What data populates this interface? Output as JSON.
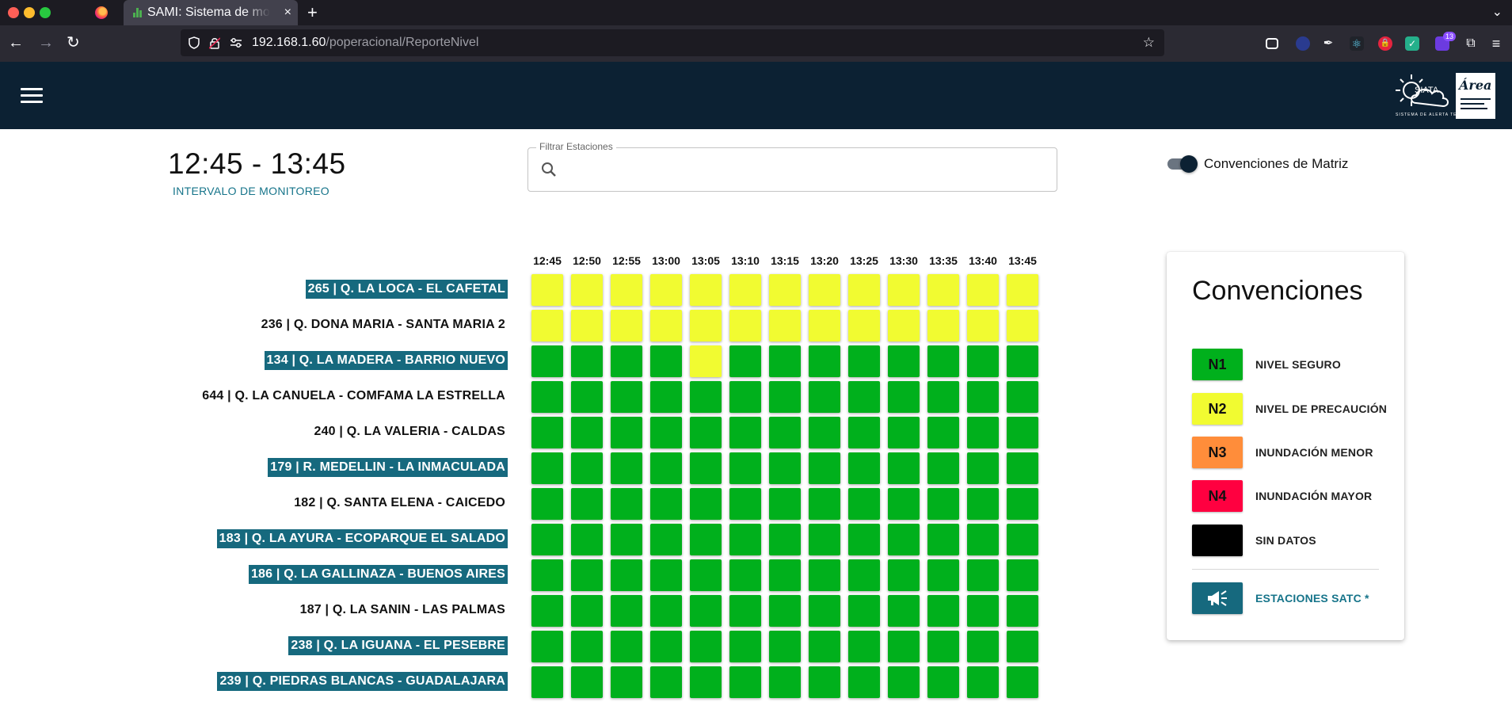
{
  "browser": {
    "tab_title": "SAMI: Sistema de monitoreo",
    "tab_close": "×",
    "new_tab": "+",
    "tab_list": "⌄",
    "url_host": "192.168.1.60",
    "url_path": "/poperacional/ReporteNivel",
    "extension_badge": "13",
    "nav_back": "←",
    "nav_forward": "→",
    "nav_reload": "↻",
    "bookmark_star": "☆"
  },
  "header": {
    "logo_siata": "SIATA",
    "logo_area": "Área",
    "logo_caption": "SISTEMA DE ALERTA TEMPRANA"
  },
  "monitor": {
    "time_range": "12:45 - 13:45",
    "time_label": "INTERVALO DE MONITOREO"
  },
  "filter": {
    "legend": "Filtrar Estaciones",
    "value": "",
    "placeholder": ""
  },
  "toggle": {
    "label": "Convenciones de Matriz",
    "on": true
  },
  "colors": {
    "N1": "#00b01c",
    "N2": "#f1fb31",
    "N3": "#ff8d3a",
    "N4": "#ff0040",
    "SD": "#000000",
    "satc": "#16697e"
  },
  "matrix": {
    "times": [
      "12:45",
      "12:50",
      "12:55",
      "13:00",
      "13:05",
      "13:10",
      "13:15",
      "13:20",
      "13:25",
      "13:30",
      "13:35",
      "13:40",
      "13:45"
    ],
    "stations": [
      {
        "label": "265 | Q. LA LOCA - EL CAFETAL",
        "satc": true,
        "levels": [
          "N2",
          "N2",
          "N2",
          "N2",
          "N2",
          "N2",
          "N2",
          "N2",
          "N2",
          "N2",
          "N2",
          "N2",
          "N2"
        ]
      },
      {
        "label": "236 | Q. DONA MARIA - SANTA MARIA 2",
        "satc": false,
        "levels": [
          "N2",
          "N2",
          "N2",
          "N2",
          "N2",
          "N2",
          "N2",
          "N2",
          "N2",
          "N2",
          "N2",
          "N2",
          "N2"
        ]
      },
      {
        "label": "134 | Q. LA MADERA - BARRIO NUEVO",
        "satc": true,
        "levels": [
          "N1",
          "N1",
          "N1",
          "N1",
          "N2",
          "N1",
          "N1",
          "N1",
          "N1",
          "N1",
          "N1",
          "N1",
          "N1"
        ]
      },
      {
        "label": "644 | Q. LA CANUELA - COMFAMA LA ESTRELLA",
        "satc": false,
        "levels": [
          "N1",
          "N1",
          "N1",
          "N1",
          "N1",
          "N1",
          "N1",
          "N1",
          "N1",
          "N1",
          "N1",
          "N1",
          "N1"
        ]
      },
      {
        "label": "240 | Q. LA VALERIA - CALDAS",
        "satc": false,
        "levels": [
          "N1",
          "N1",
          "N1",
          "N1",
          "N1",
          "N1",
          "N1",
          "N1",
          "N1",
          "N1",
          "N1",
          "N1",
          "N1"
        ]
      },
      {
        "label": "179 | R. MEDELLIN - LA INMACULADA",
        "satc": true,
        "levels": [
          "N1",
          "N1",
          "N1",
          "N1",
          "N1",
          "N1",
          "N1",
          "N1",
          "N1",
          "N1",
          "N1",
          "N1",
          "N1"
        ]
      },
      {
        "label": "182 | Q. SANTA ELENA - CAICEDO",
        "satc": false,
        "levels": [
          "N1",
          "N1",
          "N1",
          "N1",
          "N1",
          "N1",
          "N1",
          "N1",
          "N1",
          "N1",
          "N1",
          "N1",
          "N1"
        ]
      },
      {
        "label": "183 | Q. LA AYURA - ECOPARQUE EL SALADO",
        "satc": true,
        "levels": [
          "N1",
          "N1",
          "N1",
          "N1",
          "N1",
          "N1",
          "N1",
          "N1",
          "N1",
          "N1",
          "N1",
          "N1",
          "N1"
        ]
      },
      {
        "label": "186 | Q. LA GALLINAZA - BUENOS AIRES",
        "satc": true,
        "levels": [
          "N1",
          "N1",
          "N1",
          "N1",
          "N1",
          "N1",
          "N1",
          "N1",
          "N1",
          "N1",
          "N1",
          "N1",
          "N1"
        ]
      },
      {
        "label": "187 | Q. LA SANIN - LAS PALMAS",
        "satc": false,
        "levels": [
          "N1",
          "N1",
          "N1",
          "N1",
          "N1",
          "N1",
          "N1",
          "N1",
          "N1",
          "N1",
          "N1",
          "N1",
          "N1"
        ]
      },
      {
        "label": "238 | Q. LA IGUANA - EL PESEBRE",
        "satc": true,
        "levels": [
          "N1",
          "N1",
          "N1",
          "N1",
          "N1",
          "N1",
          "N1",
          "N1",
          "N1",
          "N1",
          "N1",
          "N1",
          "N1"
        ]
      },
      {
        "label": "239 | Q. PIEDRAS BLANCAS - GUADALAJARA",
        "satc": true,
        "levels": [
          "N1",
          "N1",
          "N1",
          "N1",
          "N1",
          "N1",
          "N1",
          "N1",
          "N1",
          "N1",
          "N1",
          "N1",
          "N1"
        ]
      }
    ]
  },
  "conventions": {
    "title": "Convenciones",
    "items": [
      {
        "code": "N1",
        "label": "NIVEL SEGURO"
      },
      {
        "code": "N2",
        "label": "NIVEL DE PRECAUCIÓN"
      },
      {
        "code": "N3",
        "label": "INUNDACIÓN MENOR"
      },
      {
        "code": "N4",
        "label": "INUNDACIÓN MAYOR"
      },
      {
        "code": "",
        "label": "SIN DATOS"
      }
    ],
    "satc_label": "ESTACIONES SATC *",
    "satc_icon": "megaphone-icon"
  }
}
